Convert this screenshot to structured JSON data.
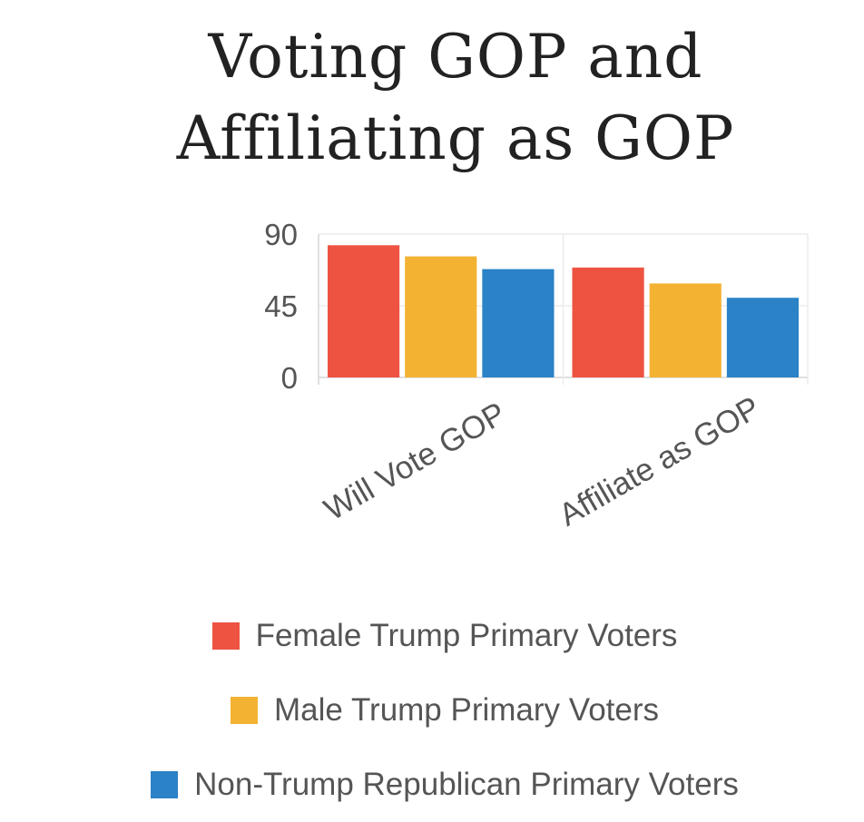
{
  "title_lines": [
    "Voting GOP and",
    "Affiliating as GOP"
  ],
  "colors": {
    "female": "#EE5342",
    "male": "#F4B232",
    "non_trump": "#2B82C6"
  },
  "chart_data": {
    "type": "bar",
    "title": "Voting GOP and Affiliating as GOP",
    "xlabel": "",
    "ylabel": "",
    "ylim": [
      0,
      90
    ],
    "yticks": [
      0,
      45,
      90
    ],
    "grid": true,
    "legend_position": "bottom",
    "categories": [
      "Will Vote GOP",
      "Affiliate as GOP"
    ],
    "series": [
      {
        "name": "Female Trump Primary Voters",
        "color": "#EE5342",
        "values": [
          83,
          69
        ]
      },
      {
        "name": "Male Trump Primary Voters",
        "color": "#F4B232",
        "values": [
          76,
          59
        ]
      },
      {
        "name": "Non-Trump Republican Primary Voters",
        "color": "#2B82C6",
        "values": [
          68,
          50
        ]
      }
    ]
  }
}
